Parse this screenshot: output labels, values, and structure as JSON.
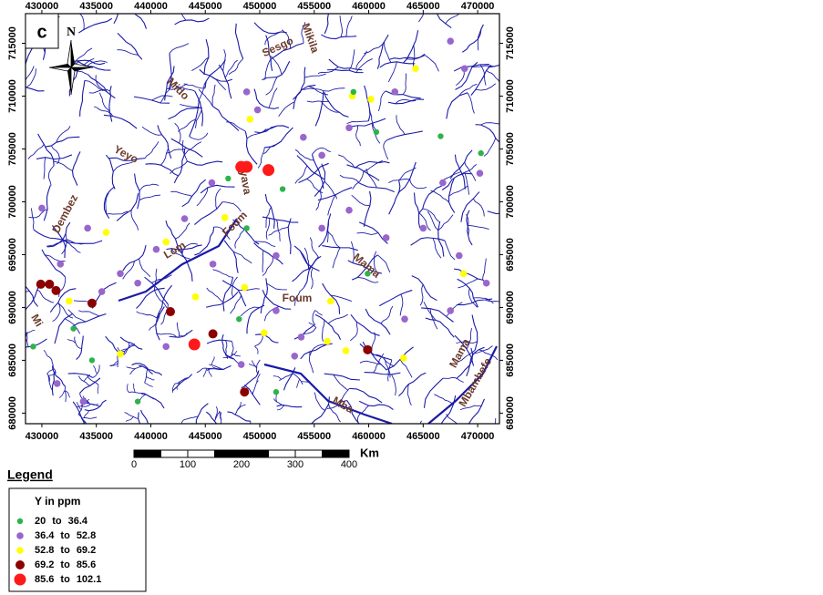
{
  "map": {
    "panel_label": "c",
    "north": "N",
    "xlim": [
      428500,
      472000
    ],
    "ylim": [
      679000,
      717800
    ],
    "xticks": [
      430000,
      435000,
      440000,
      445000,
      450000,
      455000,
      460000,
      465000,
      470000
    ],
    "yticks": [
      680000,
      685000,
      690000,
      695000,
      700000,
      705000,
      710000,
      715000
    ],
    "place_labels": [
      "Sesgo",
      "Mikila",
      "Mido",
      "Yeyo",
      "Dembez",
      "Lom",
      "Foum",
      "Nyava",
      "Mama",
      "Foum",
      "Mama",
      "Mbambefe",
      "Mba",
      "Mi"
    ],
    "scale": {
      "ticks": [
        0,
        100,
        200,
        300,
        400
      ],
      "unit": "Km"
    },
    "legend": {
      "title": "Legend",
      "subtitle": "Y in ppm",
      "separator": "to",
      "classes": [
        {
          "min": 20,
          "max": 36.4,
          "color": "#2db34a"
        },
        {
          "min": 36.4,
          "max": 52.8,
          "color": "#9966cc"
        },
        {
          "min": 52.8,
          "max": 69.2,
          "color": "#ffff00"
        },
        {
          "min": 69.2,
          "max": 85.6,
          "color": "#8b0000"
        },
        {
          "min": 85.6,
          "max": 102.1,
          "color": "#ff1a1a"
        }
      ]
    },
    "samples": [
      {
        "x": 448300,
        "y": 703300,
        "class": 4
      },
      {
        "x": 448800,
        "y": 703300,
        "class": 4
      },
      {
        "x": 450800,
        "y": 703000,
        "class": 4
      },
      {
        "x": 444000,
        "y": 686500,
        "class": 4
      },
      {
        "x": 429900,
        "y": 692200,
        "class": 3
      },
      {
        "x": 430700,
        "y": 692200,
        "class": 3
      },
      {
        "x": 431300,
        "y": 691600,
        "class": 3
      },
      {
        "x": 434600,
        "y": 690400,
        "class": 3
      },
      {
        "x": 441800,
        "y": 689600,
        "class": 3
      },
      {
        "x": 445700,
        "y": 687500,
        "class": 3
      },
      {
        "x": 448600,
        "y": 682000,
        "class": 3
      },
      {
        "x": 459900,
        "y": 686000,
        "class": 3
      },
      {
        "x": 464300,
        "y": 712600,
        "class": 2
      },
      {
        "x": 458500,
        "y": 710000,
        "class": 2
      },
      {
        "x": 460200,
        "y": 709700,
        "class": 2
      },
      {
        "x": 449100,
        "y": 707800,
        "class": 2
      },
      {
        "x": 446800,
        "y": 698500,
        "class": 2
      },
      {
        "x": 435900,
        "y": 697100,
        "class": 2
      },
      {
        "x": 441400,
        "y": 696200,
        "class": 2
      },
      {
        "x": 448600,
        "y": 691900,
        "class": 2
      },
      {
        "x": 456500,
        "y": 690600,
        "class": 2
      },
      {
        "x": 457900,
        "y": 685900,
        "class": 2
      },
      {
        "x": 456200,
        "y": 686800,
        "class": 2
      },
      {
        "x": 450400,
        "y": 687600,
        "class": 2
      },
      {
        "x": 444100,
        "y": 691000,
        "class": 2
      },
      {
        "x": 437200,
        "y": 685600,
        "class": 2
      },
      {
        "x": 432500,
        "y": 690600,
        "class": 2
      },
      {
        "x": 463200,
        "y": 685200,
        "class": 2
      },
      {
        "x": 468700,
        "y": 693200,
        "class": 2
      },
      {
        "x": 458600,
        "y": 710400,
        "class": 0
      },
      {
        "x": 460700,
        "y": 706600,
        "class": 0
      },
      {
        "x": 466600,
        "y": 706200,
        "class": 0
      },
      {
        "x": 470300,
        "y": 704600,
        "class": 0
      },
      {
        "x": 447100,
        "y": 702200,
        "class": 0
      },
      {
        "x": 452100,
        "y": 701200,
        "class": 0
      },
      {
        "x": 448800,
        "y": 697500,
        "class": 0
      },
      {
        "x": 459900,
        "y": 693200,
        "class": 0
      },
      {
        "x": 448100,
        "y": 688900,
        "class": 0
      },
      {
        "x": 432900,
        "y": 688000,
        "class": 0
      },
      {
        "x": 434600,
        "y": 685000,
        "class": 0
      },
      {
        "x": 438800,
        "y": 681100,
        "class": 0
      },
      {
        "x": 451500,
        "y": 682000,
        "class": 0
      },
      {
        "x": 429200,
        "y": 686300,
        "class": 0
      },
      {
        "x": 430000,
        "y": 699400,
        "class": 1
      },
      {
        "x": 434200,
        "y": 697500,
        "class": 1
      },
      {
        "x": 431700,
        "y": 694100,
        "class": 1
      },
      {
        "x": 437200,
        "y": 693200,
        "class": 1
      },
      {
        "x": 443100,
        "y": 698400,
        "class": 1
      },
      {
        "x": 445700,
        "y": 694100,
        "class": 1
      },
      {
        "x": 451500,
        "y": 694900,
        "class": 1
      },
      {
        "x": 455700,
        "y": 697500,
        "class": 1
      },
      {
        "x": 458200,
        "y": 699200,
        "class": 1
      },
      {
        "x": 461600,
        "y": 696600,
        "class": 1
      },
      {
        "x": 465000,
        "y": 697500,
        "class": 1
      },
      {
        "x": 468300,
        "y": 694900,
        "class": 1
      },
      {
        "x": 470800,
        "y": 692300,
        "class": 1
      },
      {
        "x": 467500,
        "y": 689700,
        "class": 1
      },
      {
        "x": 463300,
        "y": 688900,
        "class": 1
      },
      {
        "x": 466800,
        "y": 701800,
        "class": 1
      },
      {
        "x": 470200,
        "y": 702700,
        "class": 1
      },
      {
        "x": 454000,
        "y": 706100,
        "class": 1
      },
      {
        "x": 455700,
        "y": 704400,
        "class": 1
      },
      {
        "x": 458200,
        "y": 707000,
        "class": 1
      },
      {
        "x": 462400,
        "y": 710400,
        "class": 1
      },
      {
        "x": 467500,
        "y": 715200,
        "class": 1
      },
      {
        "x": 468800,
        "y": 712600,
        "class": 1
      },
      {
        "x": 448800,
        "y": 710400,
        "class": 1
      },
      {
        "x": 449800,
        "y": 708700,
        "class": 1
      },
      {
        "x": 438800,
        "y": 692300,
        "class": 1
      },
      {
        "x": 441400,
        "y": 686300,
        "class": 1
      },
      {
        "x": 448300,
        "y": 684600,
        "class": 1
      },
      {
        "x": 453200,
        "y": 685400,
        "class": 1
      },
      {
        "x": 433800,
        "y": 681100,
        "class": 1
      },
      {
        "x": 431400,
        "y": 682800,
        "class": 1
      },
      {
        "x": 453800,
        "y": 687200,
        "class": 1
      },
      {
        "x": 451500,
        "y": 689700,
        "class": 1
      },
      {
        "x": 445600,
        "y": 701800,
        "class": 1
      },
      {
        "x": 440500,
        "y": 695500,
        "class": 1
      },
      {
        "x": 435500,
        "y": 691500,
        "class": 1
      }
    ]
  }
}
